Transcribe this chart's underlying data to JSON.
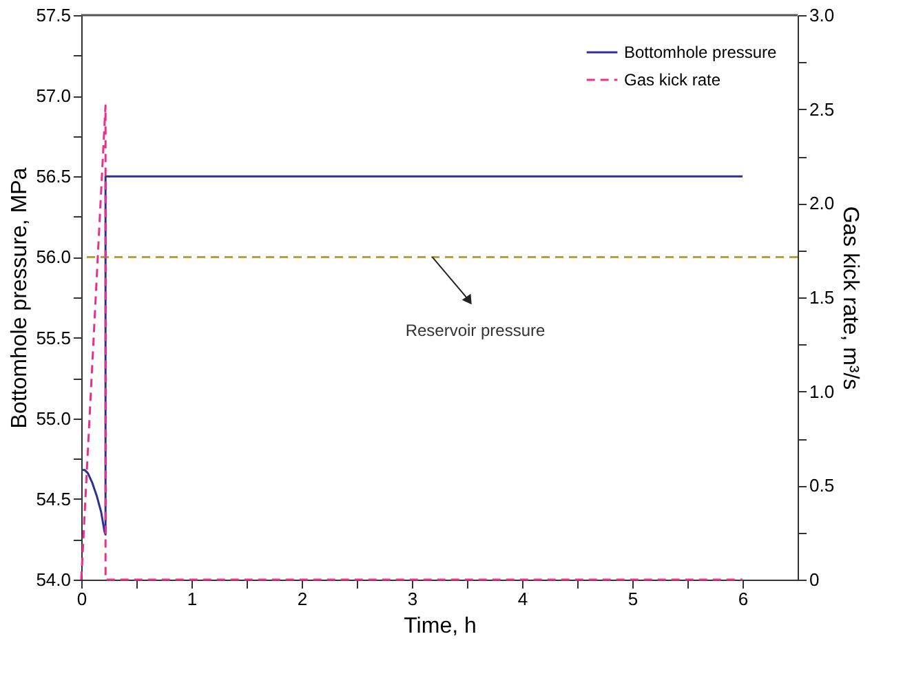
{
  "chart_data": {
    "type": "line",
    "xlabel": "Time, h",
    "ylabel": "Bottomhole pressure, MPa",
    "y2label": "Gas kick rate, m³/s",
    "series": [
      {
        "name": "Bottomhole pressure",
        "color": "#2e3192",
        "line_style": "solid",
        "x": [
          0,
          0.03,
          0.06,
          0.1,
          0.14,
          0.18,
          0.21,
          0.22,
          0.22,
          6
        ],
        "values": [
          54.68,
          54.68,
          54.66,
          54.6,
          54.52,
          54.42,
          54.3,
          54.28,
          56.5,
          56.5
        ]
      },
      {
        "name": "Gas kick rate",
        "color": "#ec2f8c",
        "line_style": "dashed",
        "axis": "y2",
        "x": [
          0,
          0.22,
          0.22,
          6
        ],
        "values": [
          0,
          2.52,
          0,
          0
        ]
      }
    ],
    "ref_lines": [
      {
        "axis": "y",
        "value": 56.0,
        "label": "Reservoir pressure",
        "color": "#b8a040",
        "line_style": "dashed"
      }
    ],
    "xlim": [
      0,
      6.5
    ],
    "xticks": [
      0,
      {
        "value": 0.5,
        "label": null
      },
      1,
      {
        "value": 1.5,
        "label": null
      },
      2,
      {
        "value": 2.5,
        "label": null
      },
      3,
      {
        "value": 3.5,
        "label": null
      },
      4,
      {
        "value": 4.5,
        "label": null
      },
      5,
      {
        "value": 5.5,
        "label": null
      },
      6
    ],
    "ylim": [
      54.0,
      57.5
    ],
    "yticks": [
      {
        "value": 54,
        "label": "54.0"
      },
      {
        "value": 54.25,
        "label": null
      },
      54.5,
      {
        "value": 54.75,
        "label": null
      },
      {
        "value": 55,
        "label": "55.0"
      },
      {
        "value": 55.25,
        "label": null
      },
      55.5,
      {
        "value": 55.75,
        "label": null
      },
      {
        "value": 56,
        "label": "56.0"
      },
      {
        "value": 56.25,
        "label": null
      },
      56.5,
      {
        "value": 56.75,
        "label": null
      },
      {
        "value": 57,
        "label": "57.0"
      },
      {
        "value": 57.25,
        "label": null
      },
      57.5
    ],
    "y2lim": [
      0,
      3.0
    ],
    "y2ticks": [
      0,
      {
        "value": 0.25,
        "label": null
      },
      0.5,
      {
        "value": 0.75,
        "label": null
      },
      {
        "value": 1,
        "label": "1.0"
      },
      {
        "value": 1.25,
        "label": null
      },
      1.5,
      {
        "value": 1.75,
        "label": null
      },
      {
        "value": 2,
        "label": "2.0"
      },
      {
        "value": 2.25,
        "label": null
      },
      2.5,
      {
        "value": 2.75,
        "label": null
      },
      {
        "value": 3,
        "label": "3.0"
      }
    ],
    "legend": "top right",
    "grid": false
  }
}
